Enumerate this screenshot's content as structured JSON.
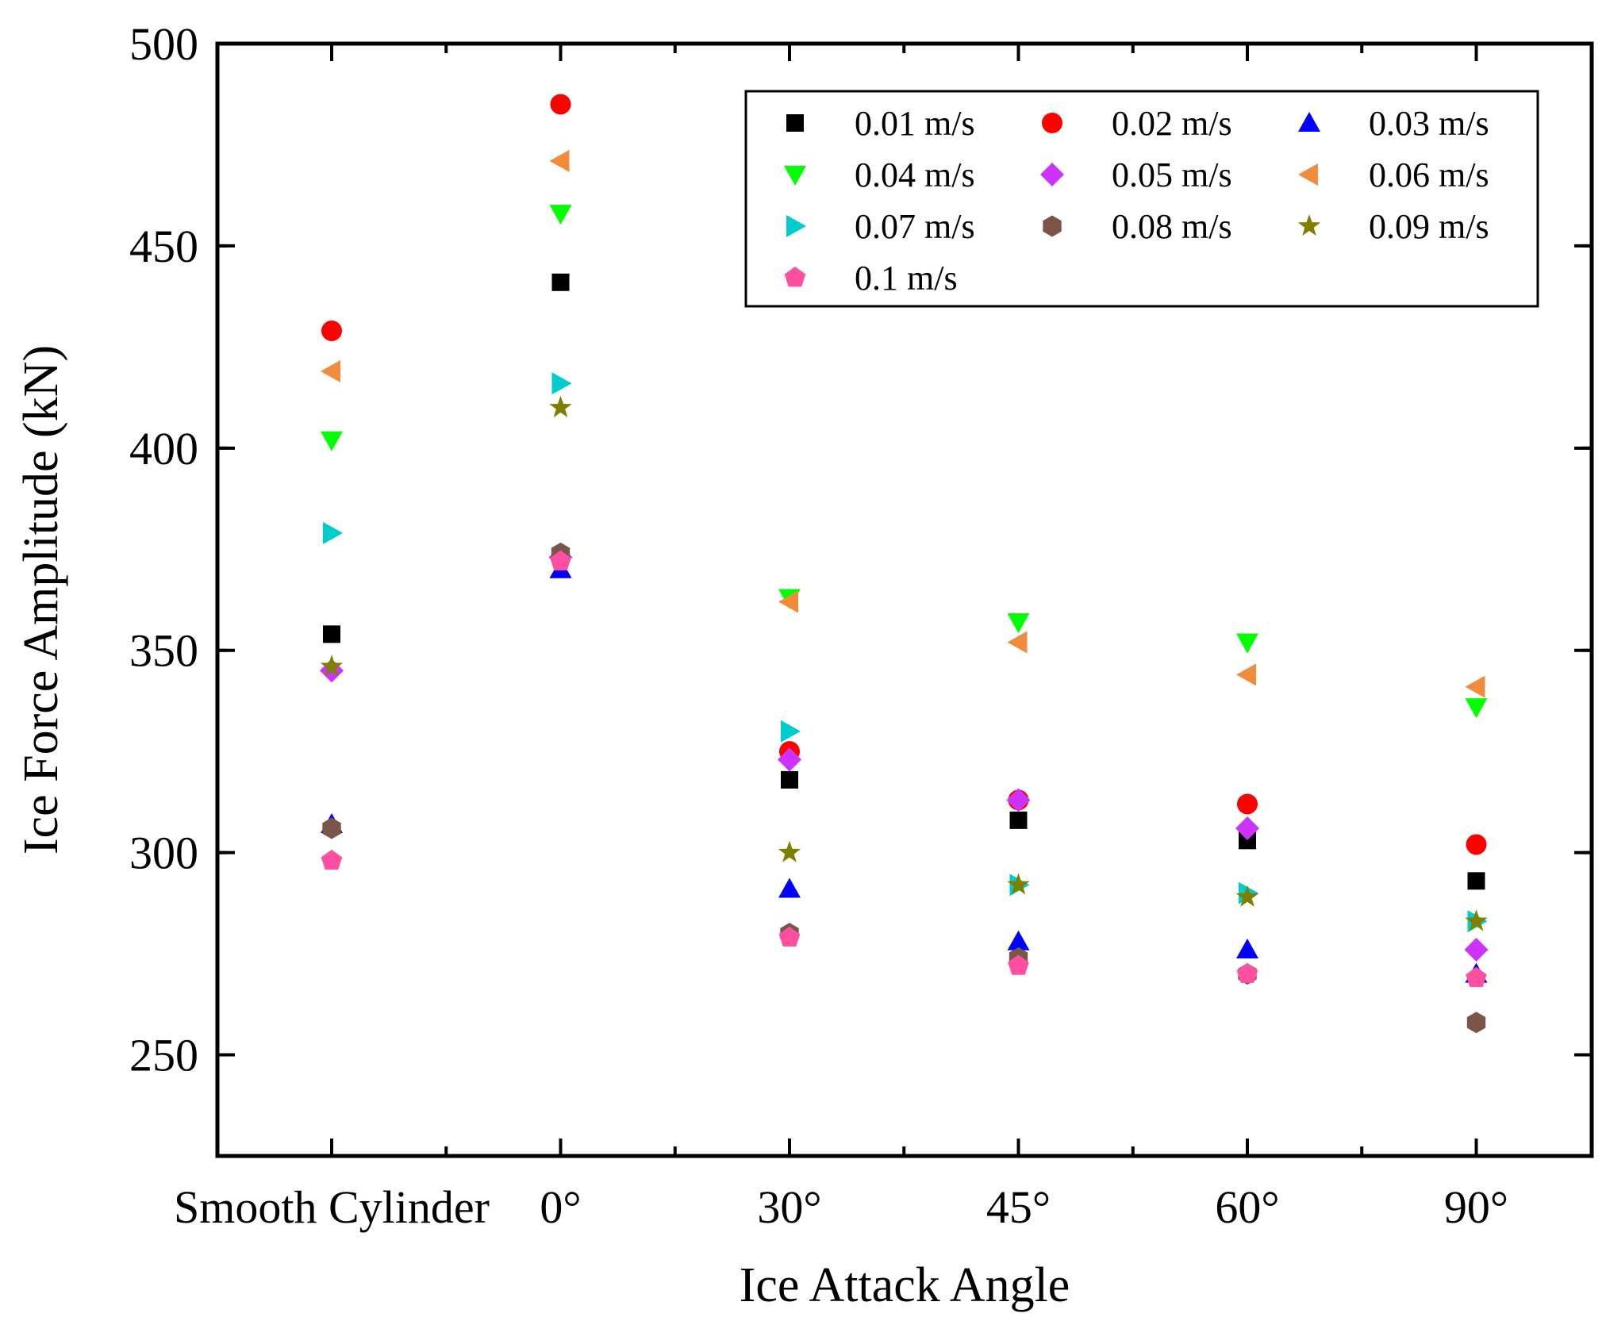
{
  "chart_data": {
    "type": "scatter",
    "title": "",
    "xlabel": "Ice Attack Angle",
    "ylabel": "Ice Force Amplitude (kN)",
    "categories": [
      "Smooth Cylinder",
      "0°",
      "30°",
      "45°",
      "60°",
      "90°"
    ],
    "ylim": [
      225,
      500
    ],
    "yticks": [
      250,
      300,
      350,
      400,
      450,
      500
    ],
    "series": [
      {
        "name": "0.01 m/s",
        "marker": "square",
        "color": "#000000",
        "values": [
          354,
          441,
          318,
          308,
          303,
          293
        ]
      },
      {
        "name": "0.02 m/s",
        "marker": "circle",
        "color": "#ff0000",
        "values": [
          429,
          485,
          325,
          313,
          312,
          302
        ]
      },
      {
        "name": "0.03 m/s",
        "marker": "triangle-up",
        "color": "#0000ff",
        "values": [
          307,
          370,
          291,
          278,
          276,
          270
        ]
      },
      {
        "name": "0.04 m/s",
        "marker": "triangle-down",
        "color": "#00ff00",
        "values": [
          402,
          458,
          363,
          357,
          352,
          336
        ]
      },
      {
        "name": "0.05 m/s",
        "marker": "diamond",
        "color": "#cc33ff",
        "values": [
          345,
          373,
          323,
          313,
          306,
          276
        ]
      },
      {
        "name": "0.06 m/s",
        "marker": "triangle-left",
        "color": "#f08c3c",
        "values": [
          419,
          471,
          362,
          352,
          344,
          341
        ]
      },
      {
        "name": "0.07 m/s",
        "marker": "triangle-right",
        "color": "#00cccc",
        "values": [
          379,
          416,
          330,
          292,
          290,
          283
        ]
      },
      {
        "name": "0.08 m/s",
        "marker": "hexagon",
        "color": "#7a5548",
        "values": [
          306,
          374,
          280,
          274,
          270,
          258
        ]
      },
      {
        "name": "0.09 m/s",
        "marker": "star",
        "color": "#808000",
        "values": [
          346,
          410,
          300,
          292,
          289,
          283
        ]
      },
      {
        "name": "0.1 m/s",
        "marker": "pentagon",
        "color": "#ff4fa0",
        "values": [
          298,
          372,
          279,
          272,
          270,
          269
        ]
      }
    ],
    "legend_position": "top-right"
  }
}
